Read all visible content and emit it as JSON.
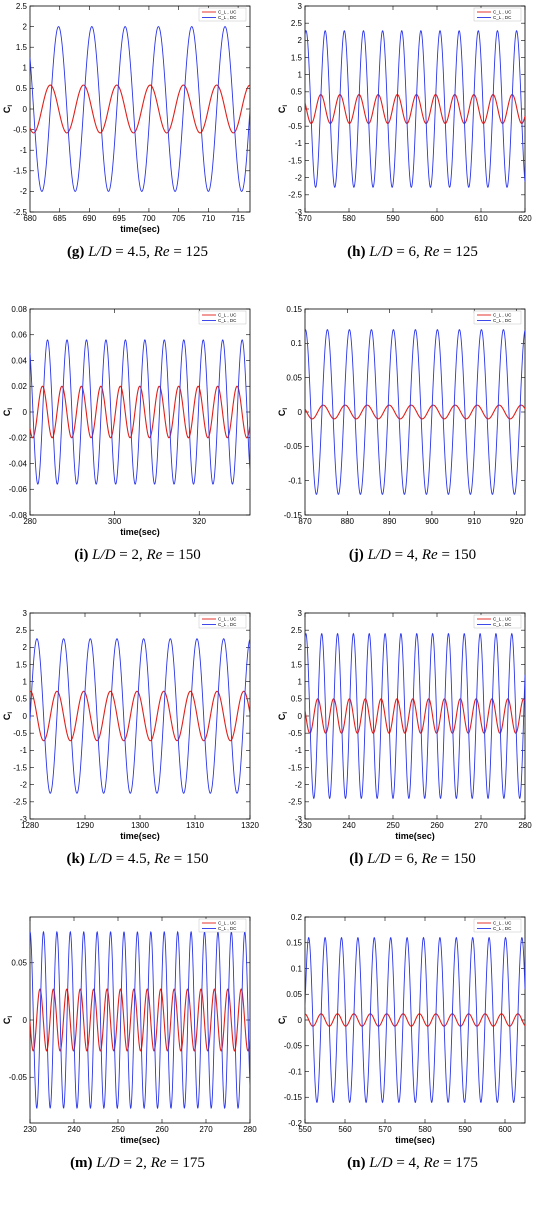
{
  "colors": {
    "uc": "#e0201b",
    "dc": "#2a35e8"
  },
  "chart_data": [
    {
      "id": "g",
      "type": "line",
      "letter": "(g)",
      "ld": "4.5",
      "re": "125",
      "ylabel": "C",
      "ylabel_sub": "l",
      "xlabel": "time(sec)",
      "xlim": [
        680,
        717
      ],
      "ylim": [
        -2.5,
        2.5
      ],
      "xticks": [
        685,
        690,
        695,
        700,
        705,
        710,
        715
      ],
      "xtick_labels": [
        "685",
        "690",
        "695",
        "700",
        "705",
        "710",
        "715"
      ],
      "x_first_label": "680",
      "yticks": [
        -2.5,
        -2,
        -1.5,
        -1,
        -0.5,
        0,
        0.5,
        1,
        1.5,
        2,
        2.5
      ],
      "ytick_labels": [
        "-2.5",
        "-2",
        "-1.5",
        "-1",
        "-0.5",
        "0",
        "0.5",
        "1",
        "1.5",
        "2",
        "2.5"
      ],
      "legend": [
        "C_L , UC",
        "C_L , DC"
      ],
      "series": [
        {
          "name": "C_L , UC",
          "amplitude": 0.58,
          "period": 5.6,
          "phase": 682.0
        },
        {
          "name": "C_L , DC",
          "amplitude": 2.0,
          "period": 5.6,
          "phase": 683.4
        }
      ]
    },
    {
      "id": "h",
      "type": "line",
      "letter": "(h)",
      "ld": "6",
      "re": "125",
      "ylabel": "C",
      "ylabel_sub": "l",
      "xlabel": "",
      "xlim": [
        570,
        620
      ],
      "ylim": [
        -3,
        3
      ],
      "xticks": [
        570,
        580,
        590,
        600,
        610,
        620
      ],
      "xtick_labels": [
        "570",
        "580",
        "590",
        "600",
        "610",
        "620"
      ],
      "x_first_label": "",
      "yticks": [
        -3,
        -2.5,
        -2,
        -1.5,
        -1,
        -0.5,
        0,
        0.5,
        1,
        1.5,
        2,
        2.5,
        3
      ],
      "ytick_labels": [
        "-3",
        "-2.5",
        "-2",
        "-1.5",
        "-1",
        "-0.5",
        "0",
        "0.5",
        "1",
        "1.5",
        "2",
        "2.5",
        "3"
      ],
      "legend": [
        "C_L , UC",
        "C_L , DC"
      ],
      "series": [
        {
          "name": "C_L , UC",
          "amplitude": 0.42,
          "period": 4.35,
          "phase": 572.5
        },
        {
          "name": "C_L , DC",
          "amplitude": 2.28,
          "period": 4.35,
          "phase": 573.5
        }
      ]
    },
    {
      "id": "i",
      "type": "line",
      "letter": "(i)",
      "ld": "2",
      "re": "150",
      "ylabel": "C",
      "ylabel_sub": "l",
      "xlabel": "time(sec)",
      "xlim": [
        280,
        332
      ],
      "ylim": [
        -0.08,
        0.08
      ],
      "xticks": [
        280,
        300,
        320
      ],
      "xtick_labels": [
        "280",
        "300",
        "320"
      ],
      "x_first_label": "",
      "yticks": [
        -0.08,
        -0.06,
        -0.04,
        -0.02,
        0,
        0.02,
        0.04,
        0.06,
        0.08
      ],
      "ytick_labels": [
        "-0.08",
        "-0.06",
        "-0.04",
        "-0.02",
        "0",
        "0.02",
        "0.04",
        "0.06",
        "0.08"
      ],
      "legend": [
        "C_L , UC",
        "C_L , DC"
      ],
      "series": [
        {
          "name": "C_L , UC",
          "amplitude": 0.02,
          "period": 4.6,
          "phase": 281.8
        },
        {
          "name": "C_L , DC",
          "amplitude": 0.056,
          "period": 4.6,
          "phase": 283.0
        }
      ]
    },
    {
      "id": "j",
      "type": "line",
      "letter": "(j)",
      "ld": "4",
      "re": "150",
      "ylabel": "C",
      "ylabel_sub": "l",
      "xlabel": "",
      "xlim": [
        870,
        922
      ],
      "ylim": [
        -0.15,
        0.15
      ],
      "xticks": [
        870,
        880,
        890,
        900,
        910,
        920
      ],
      "xtick_labels": [
        "870",
        "880",
        "890",
        "900",
        "910",
        "920"
      ],
      "x_first_label": "",
      "yticks": [
        -0.15,
        -0.1,
        -0.05,
        0,
        0.05,
        0.1,
        0.15
      ],
      "ytick_labels": [
        "-0.15",
        "-0.1",
        "-0.05",
        "0",
        "0.05",
        "0.1",
        "0.15"
      ],
      "legend": [
        "C_L , UC",
        "C_L , DC"
      ],
      "series": [
        {
          "name": "C_L , UC",
          "amplitude": 0.01,
          "period": 5.2,
          "phase": 873.0
        },
        {
          "name": "C_L , DC",
          "amplitude": 0.12,
          "period": 5.2,
          "phase": 874.0
        }
      ]
    },
    {
      "id": "k",
      "type": "line",
      "letter": "(k)",
      "ld": "4.5",
      "re": "150",
      "ylabel": "C",
      "ylabel_sub": "l",
      "xlabel": "time(sec)",
      "xlim": [
        1280,
        1320
      ],
      "ylim": [
        -3,
        3
      ],
      "xticks": [
        1290,
        1300,
        1310,
        1320
      ],
      "xtick_labels": [
        "1290",
        "1300",
        "1310",
        "1320"
      ],
      "x_first_label": "1280",
      "yticks": [
        -3,
        -2.5,
        -2,
        -1.5,
        -1,
        -0.5,
        0,
        0.5,
        1,
        1.5,
        2,
        2.5,
        3
      ],
      "ytick_labels": [
        "-3",
        "-2.5",
        "-2",
        "-1.5",
        "-1",
        "-0.5",
        "0",
        "0.5",
        "1",
        "1.5",
        "2",
        "2.5",
        "3"
      ],
      "legend": [
        "C_L , UC",
        "C_L , DC"
      ],
      "series": [
        {
          "name": "C_L , UC",
          "amplitude": 0.72,
          "period": 4.85,
          "phase": 1283.7
        },
        {
          "name": "C_L , DC",
          "amplitude": 2.25,
          "period": 4.85,
          "phase": 1284.9
        }
      ]
    },
    {
      "id": "l",
      "type": "line",
      "letter": "(l)",
      "ld": "6",
      "re": "150",
      "ylabel": "C",
      "ylabel_sub": "l",
      "xlabel": "time(sec)",
      "xlim": [
        230,
        280
      ],
      "ylim": [
        -3,
        3
      ],
      "xticks": [
        230,
        240,
        250,
        260,
        270,
        280
      ],
      "xtick_labels": [
        "230",
        "240",
        "250",
        "260",
        "270",
        "280"
      ],
      "x_first_label": "",
      "yticks": [
        -3,
        -2.5,
        -2,
        -1.5,
        -1,
        -0.5,
        0,
        0.5,
        1,
        1.5,
        2,
        2.5,
        3
      ],
      "ytick_labels": [
        "-3",
        "-2.5",
        "-2",
        "-1.5",
        "-1",
        "-0.5",
        "0",
        "0.5",
        "1",
        "1.5",
        "2",
        "2.5",
        "3"
      ],
      "legend": [
        "C_L , UC",
        "C_L , DC"
      ],
      "series": [
        {
          "name": "C_L , UC",
          "amplitude": 0.5,
          "period": 3.6,
          "phase": 232.0
        },
        {
          "name": "C_L , DC",
          "amplitude": 2.4,
          "period": 3.6,
          "phase": 232.9
        }
      ]
    },
    {
      "id": "m",
      "type": "line",
      "letter": "(m)",
      "ld": "2",
      "re": "175",
      "ylabel": "C",
      "ylabel_sub": "l",
      "xlabel": "time(sec)",
      "xlim": [
        230,
        280
      ],
      "ylim": [
        -0.09,
        0.09
      ],
      "xticks": [
        230,
        240,
        250,
        260,
        270,
        280
      ],
      "xtick_labels": [
        "230",
        "240",
        "250",
        "260",
        "270",
        "280"
      ],
      "x_first_label": "",
      "yticks": [
        -0.05,
        0,
        0.05
      ],
      "ytick_labels": [
        "-0.05",
        "0",
        "0.05"
      ],
      "legend": [
        "C_L , UC",
        "C_L , DC"
      ],
      "series": [
        {
          "name": "C_L , UC",
          "amplitude": 0.027,
          "period": 3.05,
          "phase": 231.5
        },
        {
          "name": "C_L , DC",
          "amplitude": 0.077,
          "period": 3.05,
          "phase": 232.3
        }
      ]
    },
    {
      "id": "n",
      "type": "line",
      "letter": "(n)",
      "ld": "4",
      "re": "175",
      "ylabel": "C",
      "ylabel_sub": "l",
      "xlabel": "time(sec)",
      "xlim": [
        550,
        605
      ],
      "ylim": [
        -0.2,
        0.2
      ],
      "xticks": [
        550,
        560,
        570,
        580,
        590,
        600
      ],
      "xtick_labels": [
        "550",
        "560",
        "570",
        "580",
        "590",
        "600"
      ],
      "x_first_label": "",
      "yticks": [
        -0.2,
        -0.15,
        -0.1,
        -0.05,
        0,
        0.05,
        0.1,
        0.15,
        0.2
      ],
      "ytick_labels": [
        "-0.2",
        "-0.15",
        "-0.1",
        "-0.05",
        "0",
        "0.05",
        "0.1",
        "0.15",
        "0.2"
      ],
      "legend": [
        "C_L , UC",
        "C_L , DC"
      ],
      "series": [
        {
          "name": "C_L , UC",
          "amplitude": 0.012,
          "period": 4.1,
          "phase": 553.0
        },
        {
          "name": "C_L , DC",
          "amplitude": 0.16,
          "period": 4.1,
          "phase": 554.0
        }
      ]
    }
  ]
}
